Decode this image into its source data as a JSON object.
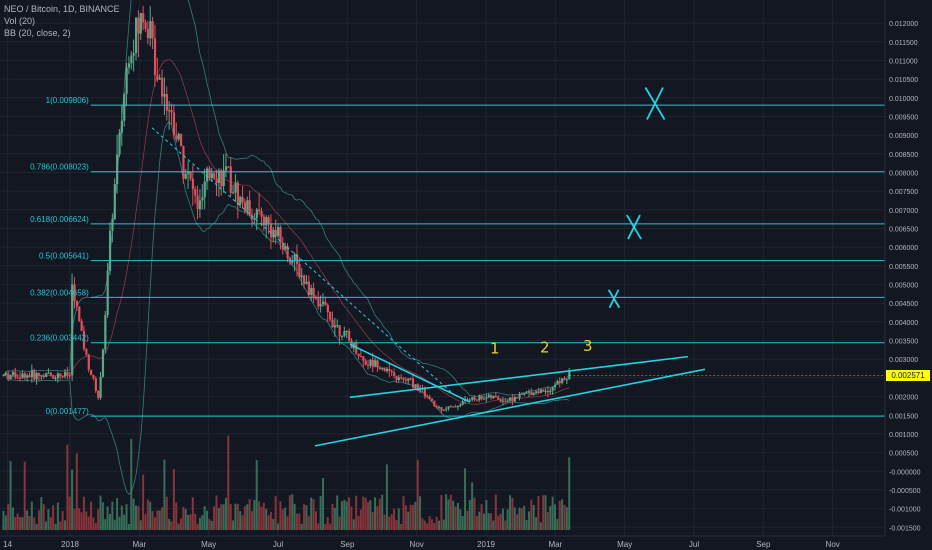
{
  "header": {
    "symbol_line": "NEO / Bitcoin, 1D, BINANCE",
    "vol_line": "Vol (20)",
    "bb_line": "BB (20, close, 2)"
  },
  "colors": {
    "background": "#131722",
    "grid": "#1f2430",
    "axis_text": "#b2b5be",
    "fib_line": "#22c7d1",
    "fib_label": "#22c7d1",
    "annotation": "#22d3e0",
    "annotation_numbers": "#e6d02a",
    "candle_up": "#5ba887",
    "candle_down": "#e0505a",
    "volume_up": "#3e7e62",
    "volume_down": "#9c3a40",
    "bb_band": "#3a9a96",
    "bb_basis": "#d0505a",
    "price_tag": "#ffff00"
  },
  "price_tag": "0.002571",
  "chart_data": {
    "type": "candlestick",
    "title": "NEO / Bitcoin, 1D, BINANCE",
    "ylim": [
      -0.0016,
      0.0123
    ],
    "y_ticks": [
      "0.012000",
      "0.011500",
      "0.011000",
      "0.010500",
      "0.010000",
      "0.009500",
      "0.009000",
      "0.008500",
      "0.008000",
      "0.007500",
      "0.007000",
      "0.006500",
      "0.006000",
      "0.005500",
      "0.005000",
      "0.004500",
      "0.004000",
      "0.003500",
      "0.003000",
      "0.002500",
      "0.002000",
      "0.001500",
      "0.001000",
      "0.000500",
      "-0.000000",
      "-0.000500",
      "-0.001000",
      "-0.001500"
    ],
    "x_ticks": [
      "14",
      "2018",
      "Mar",
      "May",
      "Jul",
      "Sep",
      "Nov",
      "2019",
      "Mar",
      "May",
      "Jul",
      "Sep",
      "Nov"
    ],
    "fib_levels": [
      {
        "label": "1(0.009806)",
        "value": 0.009806
      },
      {
        "label": "0.786(0.008023)",
        "value": 0.008023
      },
      {
        "label": "0.618(0.006624)",
        "value": 0.006624
      },
      {
        "label": "0.5(0.005641)",
        "value": 0.005641
      },
      {
        "label": "0.382(0.004658)",
        "value": 0.004658
      },
      {
        "label": "0.236(0.003442)",
        "value": 0.003442
      },
      {
        "label": "0(0.001477)",
        "value": 0.001477
      }
    ],
    "annotations": {
      "crosses": [
        "X",
        "X",
        "X"
      ],
      "wave_numbers": [
        "1",
        "2",
        "3"
      ]
    },
    "last_price": 0.002571,
    "price_path": [
      [
        0,
        0.0052
      ],
      [
        0.04,
        0.003
      ],
      [
        0.07,
        0.0019
      ],
      [
        0.1,
        0.0068
      ],
      [
        0.14,
        0.0112
      ],
      [
        0.18,
        0.0123
      ],
      [
        0.21,
        0.0108
      ],
      [
        0.24,
        0.0097
      ],
      [
        0.28,
        0.008
      ],
      [
        0.31,
        0.007
      ],
      [
        0.34,
        0.0081
      ],
      [
        0.38,
        0.0078
      ],
      [
        0.42,
        0.0071
      ],
      [
        0.47,
        0.0067
      ],
      [
        0.52,
        0.0059
      ],
      [
        0.57,
        0.005
      ],
      [
        0.62,
        0.0042
      ],
      [
        0.67,
        0.0035
      ],
      [
        0.71,
        0.0029
      ],
      [
        0.74,
        0.0029
      ],
      [
        0.78,
        0.0025
      ],
      [
        0.82,
        0.0024
      ],
      [
        0.85,
        0.0021
      ],
      [
        0.88,
        0.0017
      ],
      [
        0.92,
        0.0017
      ],
      [
        0.95,
        0.0019
      ],
      [
        1.0,
        0.002
      ],
      [
        1.05,
        0.0019
      ],
      [
        1.1,
        0.0021
      ],
      [
        1.15,
        0.0022
      ],
      [
        1.2,
        0.00257
      ]
    ]
  }
}
